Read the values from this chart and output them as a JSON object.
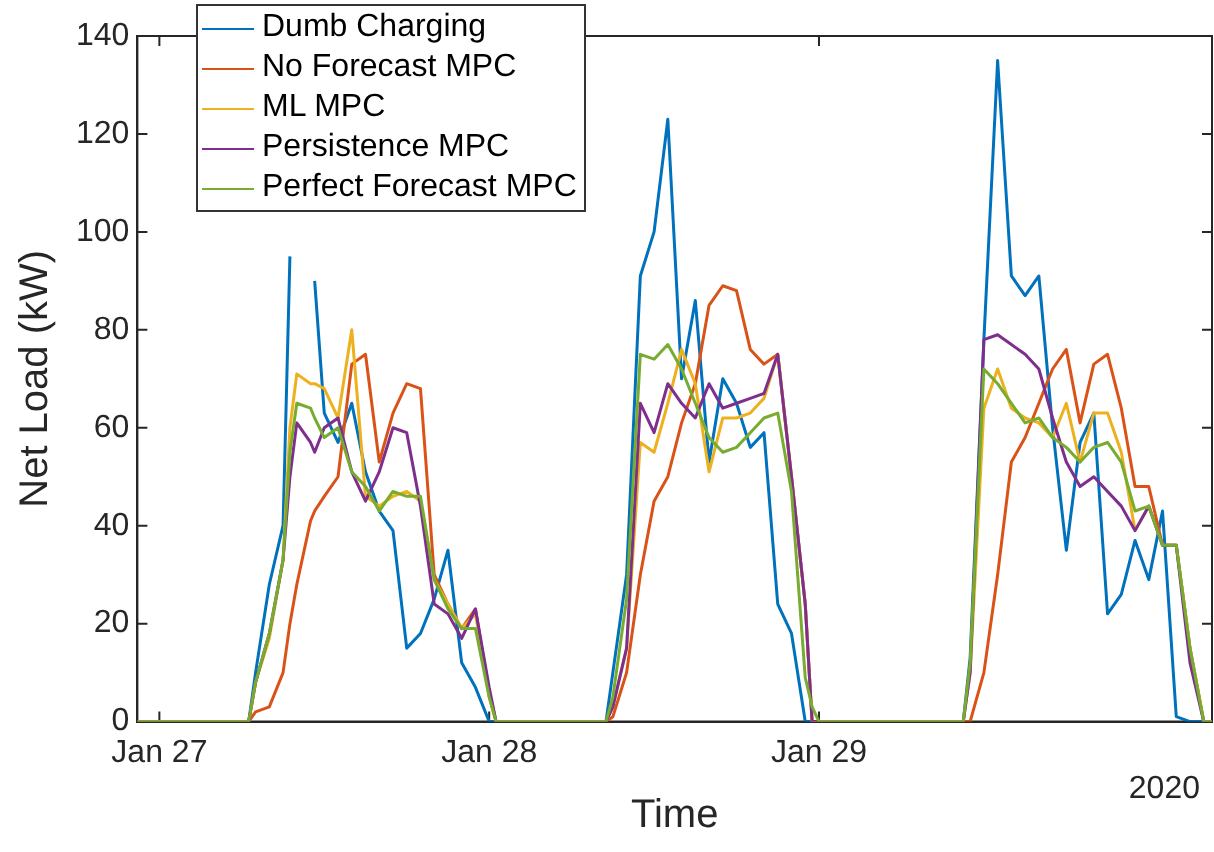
{
  "chart_data": {
    "type": "line",
    "xlabel": "Time",
    "ylabel": "Net Load (kW)",
    "x": [
      "2020-01-26T22:24",
      "2020-01-27T06:30",
      "2020-01-27T07:00",
      "2020-01-27T08:00",
      "2020-01-27T09:00",
      "2020-01-27T09:30",
      "2020-01-27T10:00",
      "2020-01-27T11:00",
      "2020-01-27T11:18",
      "2020-01-27T12:00",
      "2020-01-27T13:00",
      "2020-01-27T14:00",
      "2020-01-27T15:00",
      "2020-01-27T16:00",
      "2020-01-27T17:00",
      "2020-01-27T18:00",
      "2020-01-27T19:00",
      "2020-01-27T20:00",
      "2020-01-27T21:00",
      "2020-01-27T22:00",
      "2020-01-27T23:00",
      "2020-01-28T00:00",
      "2020-01-28T00:30",
      "2020-01-28T08:30",
      "2020-01-28T09:00",
      "2020-01-28T10:00",
      "2020-01-28T11:00",
      "2020-01-28T12:00",
      "2020-01-28T13:00",
      "2020-01-28T14:00",
      "2020-01-28T15:00",
      "2020-01-28T16:00",
      "2020-01-28T17:00",
      "2020-01-28T18:00",
      "2020-01-28T19:00",
      "2020-01-28T20:00",
      "2020-01-28T21:00",
      "2020-01-28T22:00",
      "2020-01-28T23:00",
      "2020-01-28T23:30",
      "2020-01-29T00:00",
      "2020-01-29T10:30",
      "2020-01-29T11:00",
      "2020-01-29T12:00",
      "2020-01-29T13:00",
      "2020-01-29T14:00",
      "2020-01-29T15:00",
      "2020-01-29T16:00",
      "2020-01-29T17:00",
      "2020-01-29T18:00",
      "2020-01-29T19:00",
      "2020-01-29T20:00",
      "2020-01-29T21:00",
      "2020-01-29T22:00",
      "2020-01-29T23:00",
      "2020-01-30T00:00",
      "2020-01-30T01:00",
      "2020-01-30T02:00",
      "2020-01-30T03:00",
      "2020-01-30T04:00",
      "2020-01-30T04:36"
    ],
    "series": [
      {
        "name": "Dumb Charging",
        "color": "#0072bd",
        "values": [
          0,
          0,
          10,
          28,
          40,
          95,
          null,
          null,
          90,
          63,
          57,
          65,
          51,
          43,
          39,
          15,
          18,
          25,
          35,
          12,
          7,
          0,
          0,
          0,
          10,
          30,
          91,
          100,
          123,
          70,
          86,
          53,
          70,
          65,
          56,
          59,
          24,
          18,
          0,
          0,
          0,
          0,
          13,
          78,
          135,
          91,
          87,
          91,
          60,
          35,
          57,
          63,
          22,
          26,
          37,
          29,
          43,
          1,
          0,
          0,
          0
        ]
      },
      {
        "name": "No Forecast MPC",
        "color": "#d95319",
        "values": [
          0,
          0,
          2,
          3,
          10,
          20,
          28,
          41,
          43,
          46,
          50,
          73,
          75,
          53,
          63,
          69,
          68,
          30,
          24,
          19,
          23,
          6,
          0,
          0,
          1,
          10,
          30,
          45,
          50,
          61,
          69,
          85,
          89,
          88,
          76,
          73,
          75,
          50,
          24,
          0,
          0,
          0,
          0,
          10,
          30,
          53,
          58,
          65,
          72,
          76,
          61,
          73,
          75,
          64,
          48,
          48,
          36,
          36,
          15,
          0,
          0
        ]
      },
      {
        "name": "ML MPC",
        "color": "#edb120",
        "values": [
          0,
          0,
          8,
          17,
          33,
          60,
          71,
          69,
          69,
          68,
          62,
          80,
          46,
          44,
          46,
          47,
          45,
          29,
          24,
          19,
          22,
          5,
          0,
          0,
          3,
          15,
          57,
          55,
          65,
          76,
          69,
          51,
          62,
          62,
          63,
          66,
          75,
          50,
          24,
          0,
          0,
          0,
          10,
          64,
          72,
          64,
          62,
          61,
          58,
          65,
          53,
          63,
          63,
          55,
          39,
          44,
          36,
          36,
          15,
          0,
          0
        ]
      },
      {
        "name": "Persistence MPC",
        "color": "#7e2f8e",
        "values": [
          0,
          0,
          8,
          18,
          33,
          50,
          61,
          57,
          55,
          60,
          62,
          51,
          45,
          51,
          60,
          59,
          44,
          24,
          22,
          17,
          23,
          7,
          0,
          0,
          3,
          15,
          65,
          59,
          69,
          65,
          62,
          69,
          64,
          65,
          66,
          67,
          75,
          50,
          24,
          0,
          0,
          0,
          10,
          78,
          79,
          77,
          75,
          72,
          62,
          53,
          48,
          50,
          47,
          44,
          39,
          44,
          36,
          36,
          12,
          0,
          0
        ]
      },
      {
        "name": "Perfect Forecast MPC",
        "color": "#77ac30",
        "values": [
          0,
          0,
          8,
          18,
          33,
          55,
          65,
          64,
          62,
          58,
          60,
          51,
          48,
          43,
          47,
          46,
          46,
          29,
          23,
          19,
          19,
          5,
          0,
          0,
          5,
          25,
          75,
          74,
          77,
          72,
          65,
          58,
          55,
          56,
          59,
          62,
          63,
          47,
          9,
          3,
          0,
          0,
          12,
          72,
          69,
          65,
          61,
          62,
          58,
          56,
          53,
          56,
          57,
          53,
          43,
          44,
          36,
          36,
          15,
          0,
          0
        ]
      }
    ],
    "xlim": [
      "2020-01-26T22:24",
      "2020-01-30T04:36"
    ],
    "xticks": [
      {
        "value": "2020-01-27",
        "label": "Jan 27"
      },
      {
        "value": "2020-01-28",
        "label": "Jan 28"
      },
      {
        "value": "2020-01-29",
        "label": "Jan 29"
      }
    ],
    "ylim": [
      0,
      140
    ],
    "yticks": [
      0,
      20,
      40,
      60,
      80,
      100,
      120,
      140
    ],
    "annotations": [
      "2020"
    ],
    "legend": "top left",
    "grid": false,
    "marker": "none",
    "line_style": "solid"
  }
}
